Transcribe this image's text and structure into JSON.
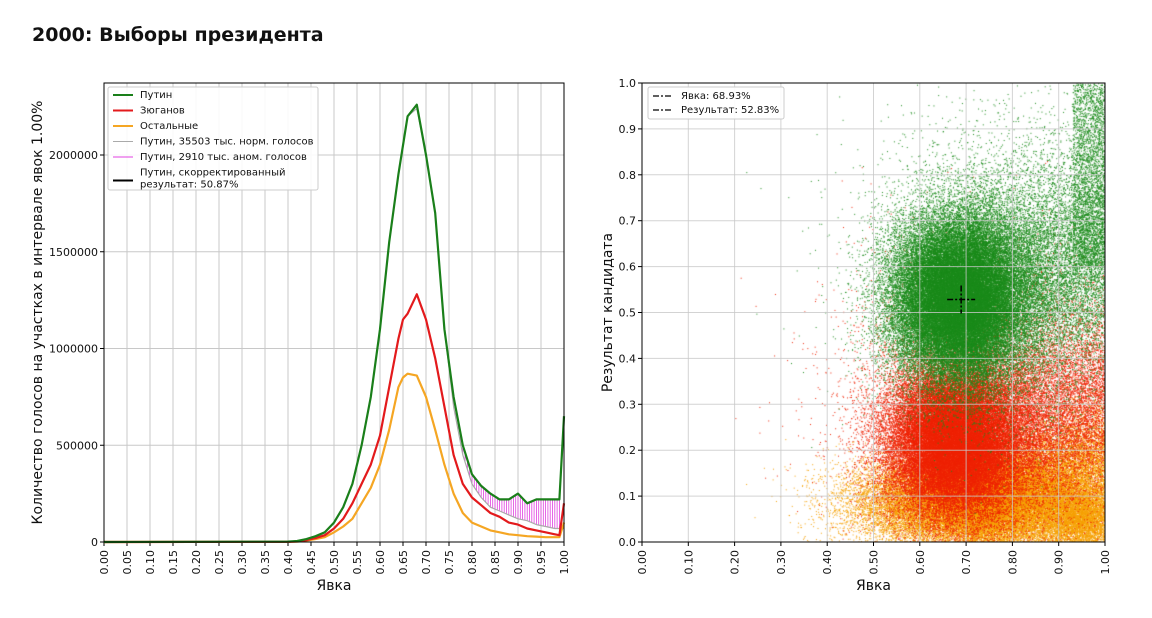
{
  "title": "2000: Выборы президента",
  "chart_data": [
    {
      "type": "line",
      "xlabel": "Явка",
      "ylabel": "Количество голосов на участках в интервале явок 1.00%",
      "xlim": [
        0,
        1
      ],
      "ylim": [
        0,
        2350000
      ],
      "xticks": [
        "0.00",
        "0.05",
        "0.10",
        "0.15",
        "0.20",
        "0.25",
        "0.30",
        "0.35",
        "0.40",
        "0.45",
        "0.50",
        "0.55",
        "0.60",
        "0.65",
        "0.70",
        "0.75",
        "0.80",
        "0.85",
        "0.90",
        "0.95",
        "1.00"
      ],
      "yticks": [
        "0",
        "500000",
        "1000000",
        "1500000",
        "2000000"
      ],
      "grid": true,
      "legend_position": "top-left",
      "x": [
        0,
        0.4,
        0.42,
        0.44,
        0.46,
        0.48,
        0.5,
        0.52,
        0.54,
        0.56,
        0.58,
        0.6,
        0.62,
        0.64,
        0.65,
        0.66,
        0.68,
        0.7,
        0.72,
        0.74,
        0.76,
        0.78,
        0.8,
        0.82,
        0.84,
        0.86,
        0.88,
        0.9,
        0.92,
        0.94,
        0.96,
        0.98,
        0.99,
        1.0
      ],
      "series": [
        {
          "name": "Путин",
          "color": "#1a7f1a",
          "values": [
            0,
            2000,
            5000,
            15000,
            30000,
            50000,
            100000,
            180000,
            300000,
            500000,
            750000,
            1100000,
            1550000,
            1900000,
            2050000,
            2200000,
            2260000,
            2000000,
            1700000,
            1100000,
            750000,
            500000,
            350000,
            290000,
            250000,
            220000,
            220000,
            250000,
            200000,
            220000,
            220000,
            220000,
            220000,
            650000
          ]
        },
        {
          "name": "Зюганов",
          "color": "#e31a1c",
          "values": [
            0,
            1000,
            3000,
            10000,
            20000,
            35000,
            70000,
            120000,
            200000,
            300000,
            400000,
            550000,
            800000,
            1050000,
            1150000,
            1180000,
            1280000,
            1150000,
            950000,
            700000,
            450000,
            300000,
            230000,
            190000,
            150000,
            130000,
            100000,
            90000,
            70000,
            60000,
            50000,
            40000,
            35000,
            200000
          ]
        },
        {
          "name": "Остальные",
          "color": "#f5a623",
          "values": [
            0,
            1000,
            2000,
            7000,
            15000,
            25000,
            50000,
            80000,
            120000,
            200000,
            280000,
            400000,
            580000,
            800000,
            850000,
            870000,
            860000,
            750000,
            580000,
            400000,
            250000,
            150000,
            100000,
            80000,
            60000,
            50000,
            40000,
            35000,
            30000,
            28000,
            25000,
            25000,
            25000,
            100000
          ]
        },
        {
          "name": "Путин, 35503 тыс. норм. голосов",
          "color": "#aaaaaa",
          "values": [
            0,
            2000,
            5000,
            15000,
            30000,
            50000,
            100000,
            180000,
            300000,
            500000,
            750000,
            1100000,
            1550000,
            1900000,
            2050000,
            2200000,
            2240000,
            2000000,
            1700000,
            1100000,
            700000,
            450000,
            300000,
            230000,
            180000,
            160000,
            140000,
            120000,
            110000,
            90000,
            80000,
            70000,
            70000,
            70000
          ]
        }
      ],
      "legend": [
        {
          "label": "Путин",
          "color": "#1a7f1a",
          "style": "solid"
        },
        {
          "label": "Зюганов",
          "color": "#e31a1c",
          "style": "solid"
        },
        {
          "label": "Остальные",
          "color": "#f5a623",
          "style": "solid"
        },
        {
          "label": "Путин, 35503 тыс. норм. голосов",
          "color": "#aaaaaa",
          "style": "solid"
        },
        {
          "label": "Путин, 2910 тыс. аном. голосов",
          "color": "#e040e0",
          "style": "solid"
        },
        {
          "label": "Путин, скорректированный",
          "label2": "результат: 50.87%",
          "color": "#000000",
          "style": "solid"
        }
      ],
      "anomaly_fill_color": "#e040e0"
    },
    {
      "type": "scatter",
      "xlabel": "Явка",
      "ylabel": "Результат кандидата",
      "xlim": [
        0,
        1
      ],
      "ylim": [
        0,
        1
      ],
      "xticks": [
        "0.00",
        "0.10",
        "0.20",
        "0.30",
        "0.40",
        "0.50",
        "0.60",
        "0.70",
        "0.80",
        "0.90",
        "1.00"
      ],
      "yticks": [
        "0.0",
        "0.1",
        "0.2",
        "0.3",
        "0.4",
        "0.5",
        "0.6",
        "0.7",
        "0.8",
        "0.9",
        "1.0"
      ],
      "grid": true,
      "legend_position": "top-left",
      "series_colors": {
        "Путин": "#1a8a1a",
        "Зюганов": "#ee2200",
        "Остальные": "#f5a000"
      },
      "marker": {
        "turnout": 0.6893,
        "result": 0.5283
      },
      "legend": [
        {
          "label": "Явка: 68.93%",
          "style": "dashdot"
        },
        {
          "label": "Результат: 52.83%",
          "style": "dashdot"
        }
      ]
    }
  ]
}
